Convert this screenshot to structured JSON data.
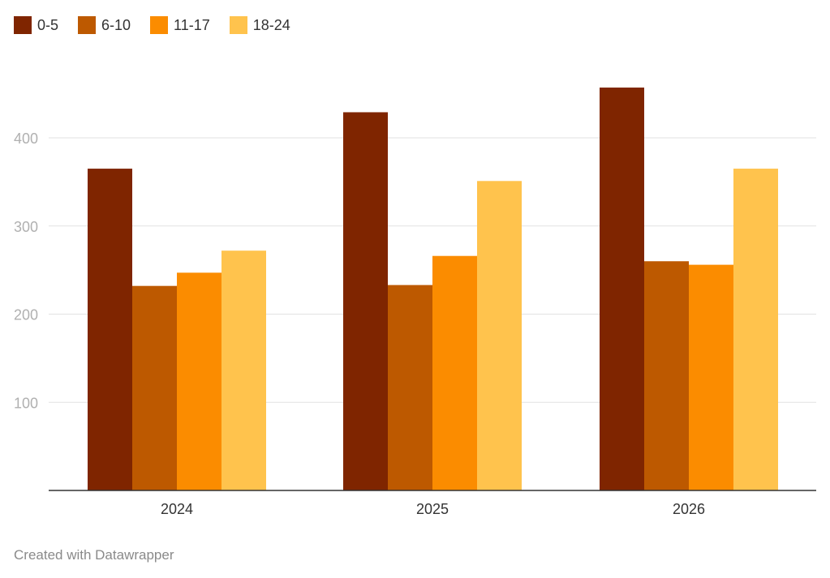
{
  "chart_data": {
    "type": "bar",
    "categories": [
      "2024",
      "2025",
      "2026"
    ],
    "series": [
      {
        "name": "0-5",
        "color": "#7f2500",
        "values": [
          365,
          429,
          457
        ]
      },
      {
        "name": "6-10",
        "color": "#bd5900",
        "values": [
          232,
          233,
          260
        ]
      },
      {
        "name": "11-17",
        "color": "#fb8c00",
        "values": [
          247,
          266,
          256
        ]
      },
      {
        "name": "18-24",
        "color": "#ffc34d",
        "values": [
          272,
          351,
          365
        ]
      }
    ],
    "yticks": [
      "100",
      "200",
      "300",
      "400"
    ],
    "ylim": [
      0,
      500
    ],
    "grid": true,
    "legend_position": "top-left",
    "title": "",
    "xlabel": "",
    "ylabel": ""
  },
  "footer": {
    "credit": "Created with Datawrapper"
  }
}
